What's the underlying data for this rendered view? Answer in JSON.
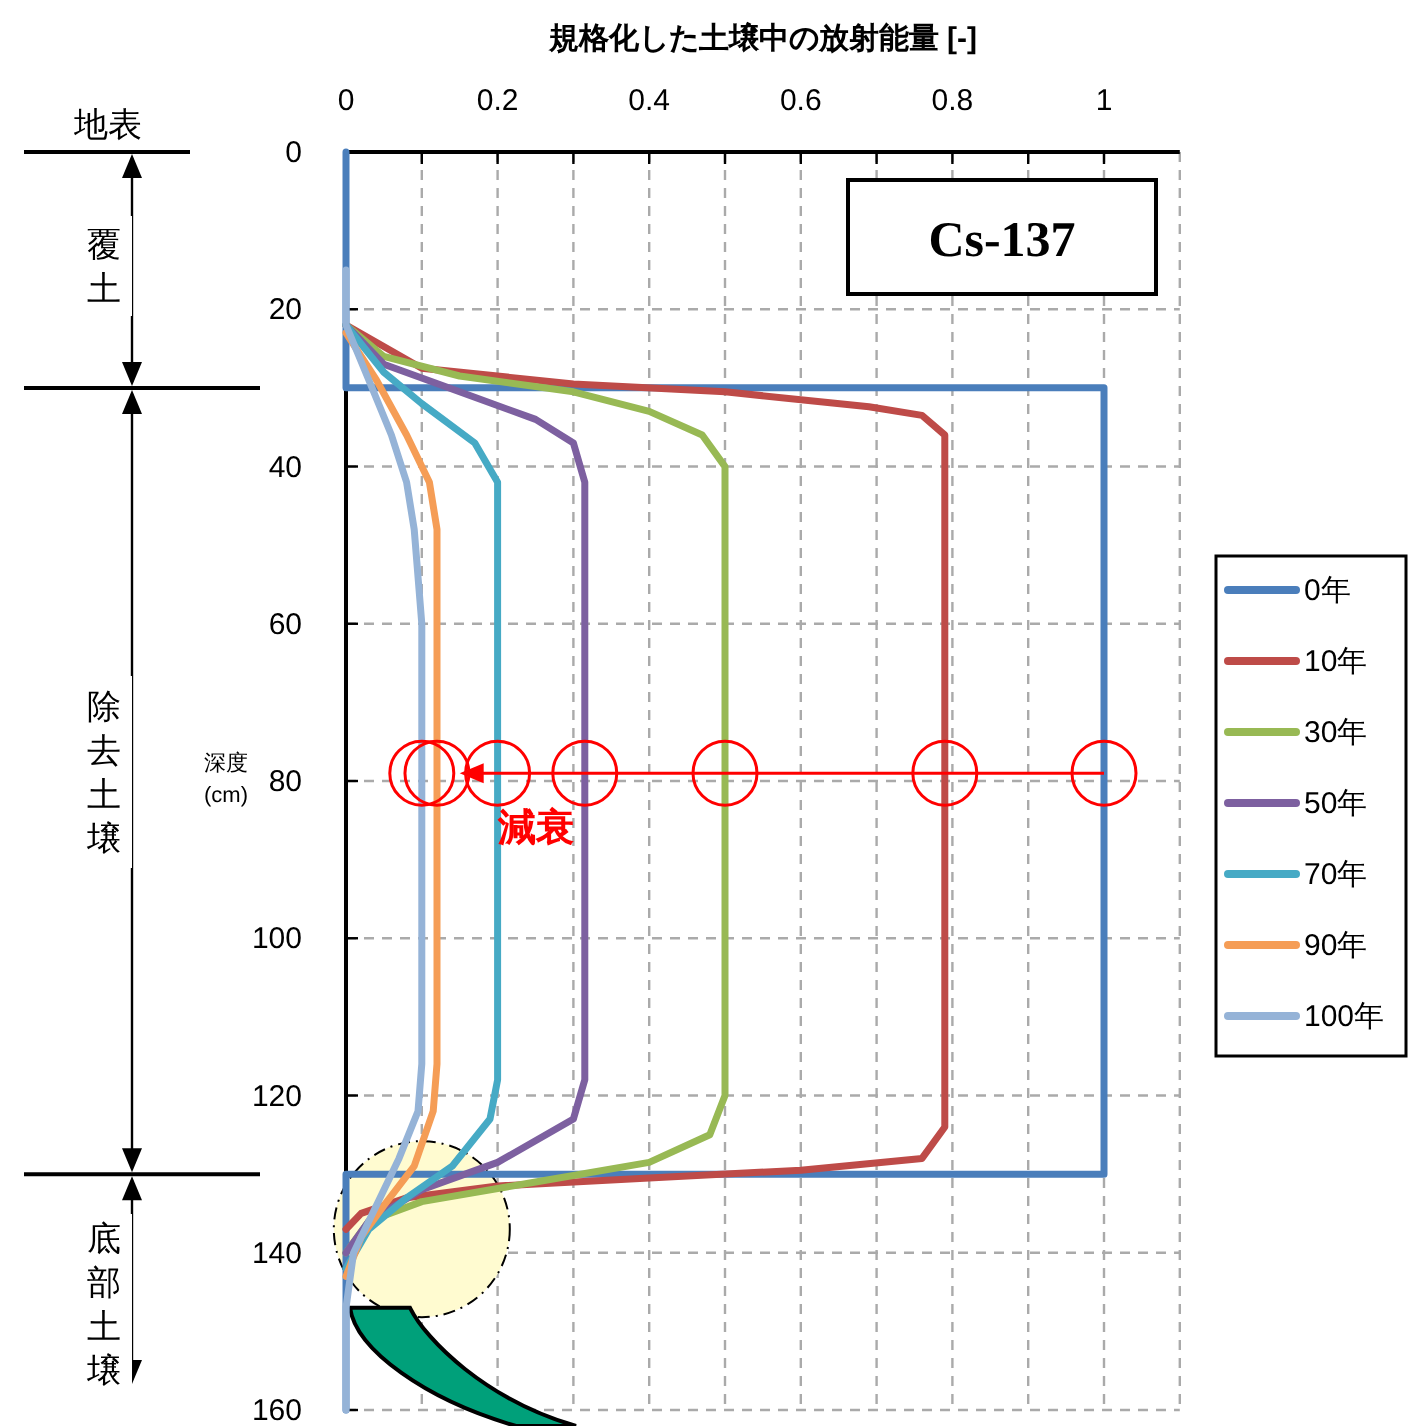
{
  "chart_data": {
    "type": "line",
    "xlabel": "規格化した土壌中の放射能量 [-]",
    "ylabel": "深度 (cm)",
    "xlim": [
      0,
      1.1
    ],
    "ylim": [
      160,
      0
    ],
    "xticks": [
      0,
      {
        "value": 0.1,
        "label": null
      },
      0.2,
      {
        "value": 0.3,
        "label": null
      },
      0.4,
      {
        "value": 0.5,
        "label": null
      },
      0.6,
      {
        "value": 0.7,
        "label": null
      },
      0.8,
      {
        "value": 0.9,
        "label": null
      },
      1
    ],
    "yticks": [
      0,
      20,
      40,
      60,
      80,
      100,
      120,
      140,
      160
    ],
    "grid": true,
    "legend": "right",
    "marker": "none",
    "line_style": "solid",
    "annotations": [
      "Cs-137",
      "減衰",
      "地表",
      "覆土",
      "除去土壌",
      "底部土壌"
    ],
    "series": [
      {
        "name": "0年",
        "color": "#4a7ebb",
        "x": [
          0,
          0,
          1,
          1,
          0,
          0
        ],
        "values": [
          0,
          30,
          30,
          130,
          130,
          160
        ]
      },
      {
        "name": "10年",
        "color": "#be4b48",
        "x": [
          0,
          0.1,
          0.3,
          0.5,
          0.69,
          0.76,
          0.79,
          0.79,
          0.79,
          0.76,
          0.6,
          0.4,
          0.2,
          0.08,
          0.02,
          0
        ],
        "values": [
          22,
          27.5,
          29.5,
          30.5,
          32.4,
          33.5,
          36,
          40,
          124,
          128,
          129.5,
          130.5,
          131.5,
          133,
          135,
          137
        ]
      },
      {
        "name": "30年",
        "color": "#98b954",
        "x": [
          0,
          0.05,
          0.15,
          0.3,
          0.4,
          0.47,
          0.5,
          0.5,
          0.48,
          0.4,
          0.25,
          0.1,
          0.03,
          0
        ],
        "values": [
          22,
          26,
          28.5,
          30.5,
          33,
          36,
          40,
          120,
          125,
          128.5,
          131,
          133.5,
          136,
          140
        ]
      },
      {
        "name": "50年",
        "color": "#7d60a0",
        "x": [
          0,
          0.05,
          0.15,
          0.25,
          0.3,
          0.315,
          0.315,
          0.3,
          0.2,
          0.1,
          0.03,
          0
        ],
        "values": [
          22,
          27,
          30.5,
          34,
          37,
          42,
          118,
          123,
          128.5,
          132,
          136,
          140
        ]
      },
      {
        "name": "70年",
        "color": "#46aac5",
        "x": [
          0,
          0.05,
          0.1,
          0.17,
          0.2,
          0.2,
          0.2,
          0.19,
          0.14,
          0.08,
          0.03,
          0
        ],
        "values": [
          22,
          28,
          32,
          37,
          42,
          45,
          118,
          123,
          129,
          133,
          137,
          142
        ]
      },
      {
        "name": "90年",
        "color": "#f59d56",
        "x": [
          0,
          0.04,
          0.08,
          0.11,
          0.12,
          0.12,
          0.115,
          0.09,
          0.05,
          0.02,
          0
        ],
        "values": [
          23,
          29,
          36,
          42,
          48,
          116,
          122,
          129,
          134,
          138,
          143
        ]
      },
      {
        "name": "100年",
        "color": "#95b3d7",
        "x": [
          0,
          0,
          0.03,
          0.06,
          0.08,
          0.09,
          0.1,
          0.1,
          0.095,
          0.07,
          0.04,
          0.01,
          0,
          0
        ],
        "values": [
          15,
          22,
          29,
          36,
          42,
          48,
          60,
          116,
          122,
          128,
          134,
          140,
          147,
          160
        ]
      }
    ]
  }
}
